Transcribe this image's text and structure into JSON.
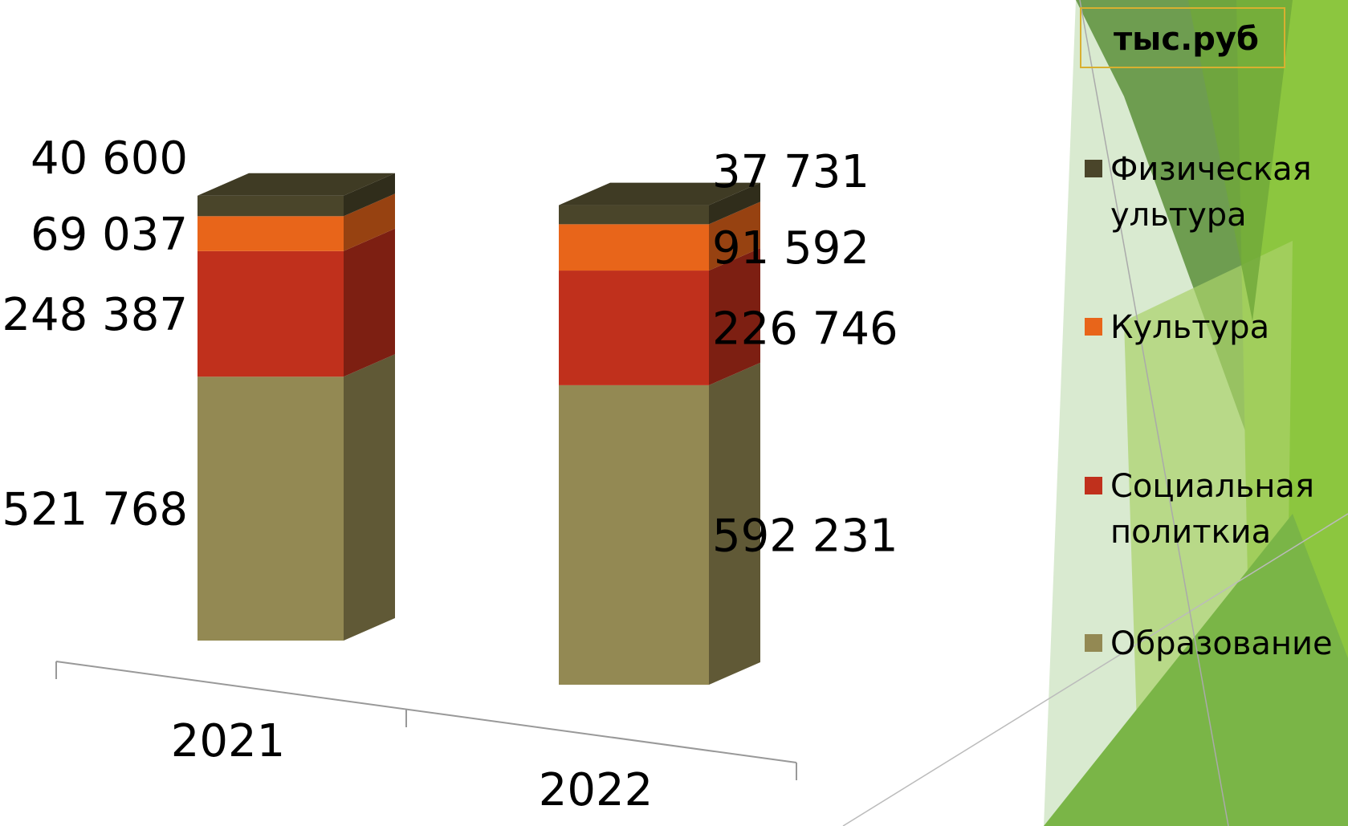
{
  "chart_data": {
    "type": "bar3d-stacked",
    "unit": "тыс.руб",
    "categories": [
      "2021",
      "2022"
    ],
    "series": [
      {
        "name": "Образование",
        "color": "#938953",
        "values": [
          521768,
          592231
        ],
        "value_labels": [
          "521 768",
          "592 231"
        ]
      },
      {
        "name": "Социальная политкиа",
        "color": "#c0301c",
        "values": [
          248387,
          226746
        ],
        "value_labels": [
          "248 387",
          "226 746"
        ]
      },
      {
        "name": "Культура",
        "color": "#e8651a",
        "values": [
          69037,
          91592
        ],
        "value_labels": [
          "69 037",
          "91 592"
        ]
      },
      {
        "name": "Физическая ультура",
        "color": "#4a452a",
        "values": [
          40600,
          37731
        ],
        "value_labels": [
          "40 600",
          "37 731"
        ]
      }
    ]
  }
}
